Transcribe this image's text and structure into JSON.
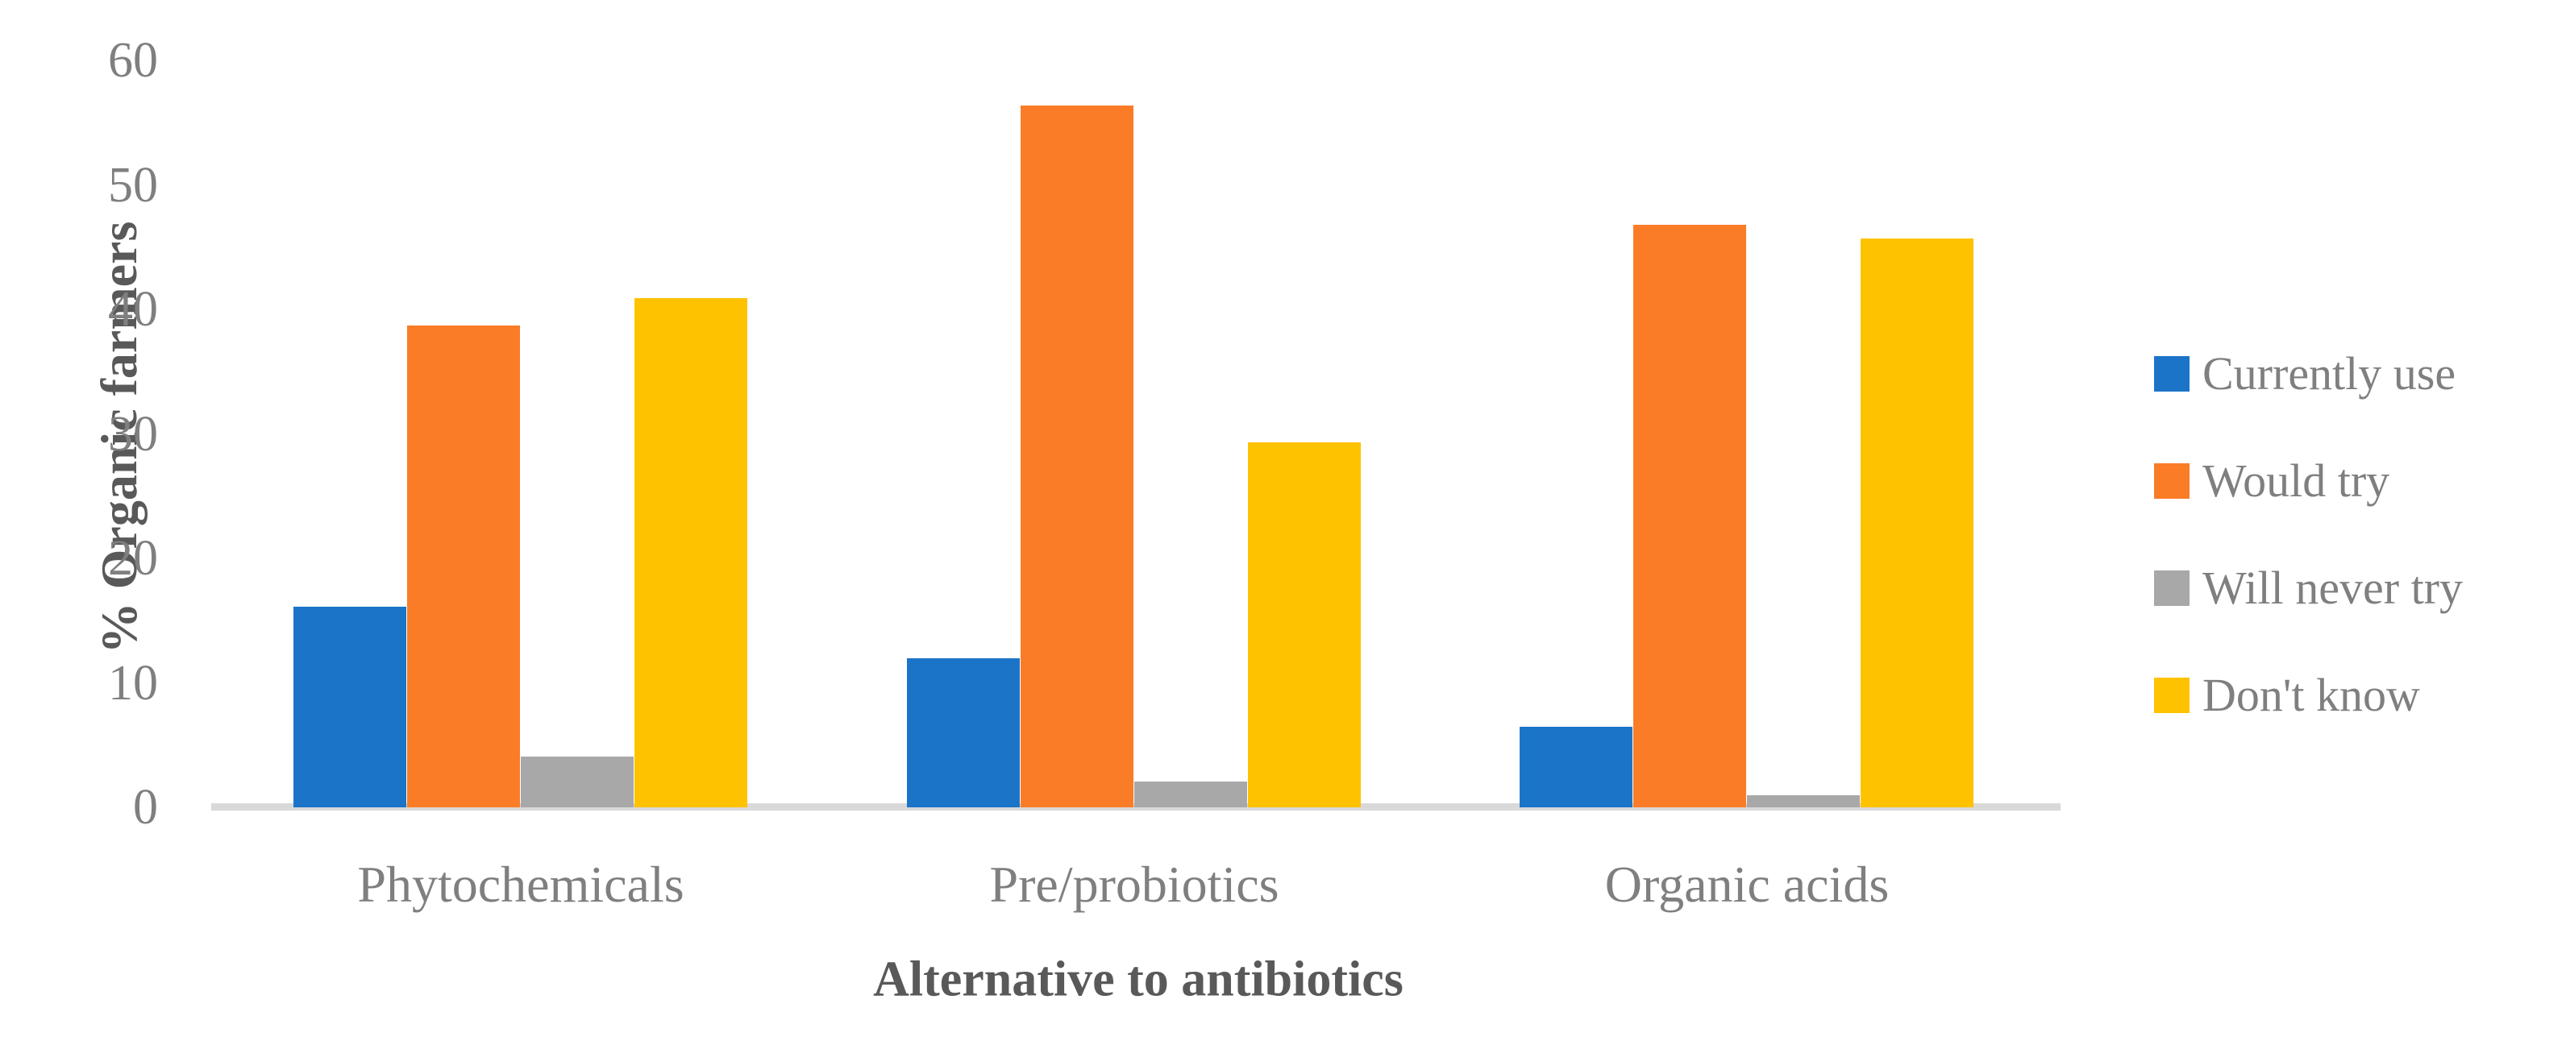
{
  "chart_data": {
    "type": "bar",
    "title": "",
    "categories": [
      "Phytochemicals",
      "Pre/probiotics",
      "Organic acids"
    ],
    "series": [
      {
        "name": "Currently use",
        "color": "#1b74c8",
        "values": [
          16.1,
          12.0,
          6.5
        ]
      },
      {
        "name": "Would try",
        "color": "#fb7c27",
        "values": [
          38.7,
          56.4,
          46.8
        ]
      },
      {
        "name": "Will never try",
        "color": "#a8a8a8",
        "values": [
          4.1,
          2.1,
          1.0
        ]
      },
      {
        "name": "Don't know",
        "color": "#ffc200",
        "values": [
          40.9,
          29.3,
          45.7
        ]
      }
    ],
    "xlabel": "Alternative to antibiotics",
    "ylabel": "% Organic farmers",
    "ylim": [
      0,
      60
    ],
    "yticks": [
      0,
      10,
      20,
      30,
      40,
      50,
      60
    ],
    "grid": false,
    "legend_position": "right",
    "colors_meta": {
      "axis_line": "#d9d9d9",
      "tick_text": "#7f7f7f",
      "title_text": "#595959",
      "legend_text": "#7f7f7f"
    }
  }
}
